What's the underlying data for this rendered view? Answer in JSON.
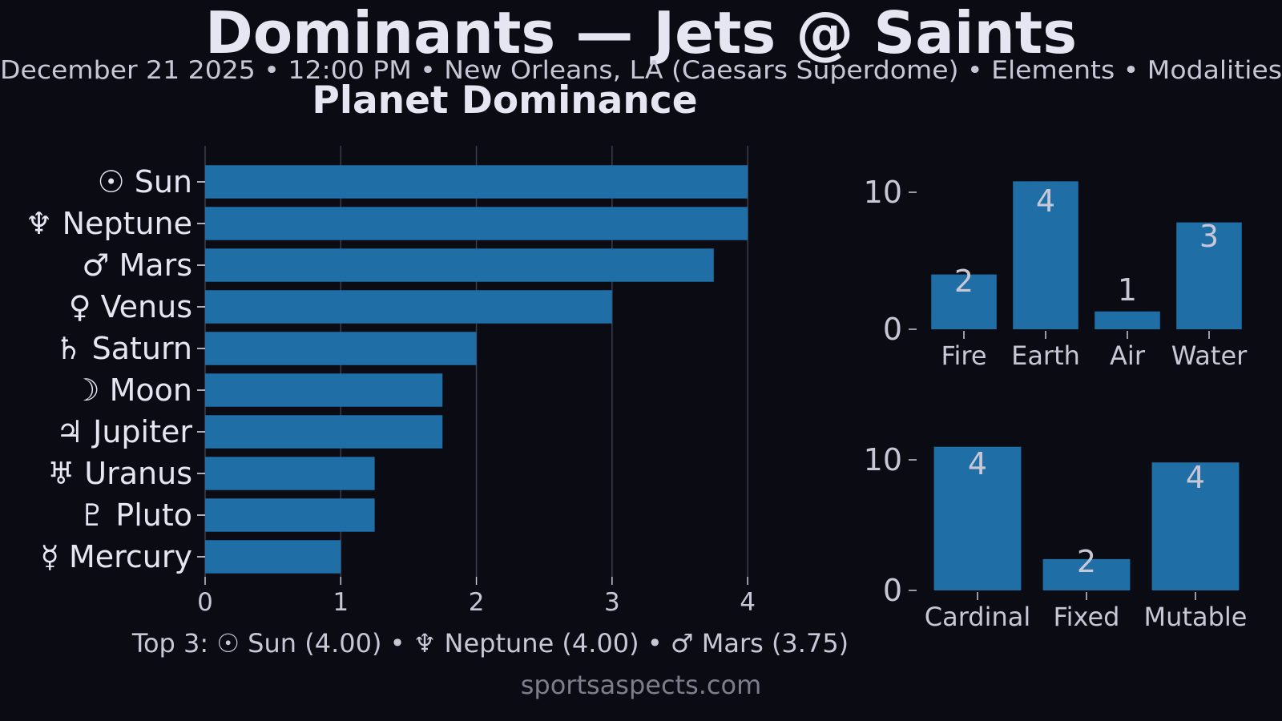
{
  "header": {
    "title": "Dominants — Jets @ Saints",
    "subtitle": "December 21 2025 • 12:00 PM • New Orleans, LA (Caesars Superdome) • Elements • Modalities"
  },
  "footer": {
    "top3": "Top 3: ☉ Sun (4.00) • ♆ Neptune (4.00) • ♂ Mars (3.75)",
    "site": "sportsaspects.com"
  },
  "colors": {
    "background": "#0b0b14",
    "bar": "#1f6ea6",
    "text": "#e6e6f2",
    "muted_text": "#c7c7d6",
    "grid": "#3a3a4a",
    "watermark": "#7d7d8c"
  },
  "chart_data": [
    {
      "type": "bar",
      "orientation": "horizontal",
      "title": "Planet Dominance",
      "categories": [
        "☉ Sun",
        "♆ Neptune",
        "♂ Mars",
        "♀ Venus",
        "♄ Saturn",
        "☽ Moon",
        "♃ Jupiter",
        "♅ Uranus",
        "♇ Pluto",
        "☿ Mercury"
      ],
      "values": [
        4.0,
        4.0,
        3.75,
        3.0,
        2.0,
        1.75,
        1.75,
        1.25,
        1.25,
        1.0
      ],
      "xlim": [
        0,
        4.2
      ],
      "xticks": [
        "0",
        "1",
        "2",
        "3",
        "4"
      ],
      "grid": true
    },
    {
      "type": "bar",
      "title": "",
      "categories": [
        "Fire",
        "Earth",
        "Air",
        "Water"
      ],
      "values": [
        4.0,
        10.8,
        1.3,
        7.8
      ],
      "data_labels": [
        "2",
        "4",
        "1",
        "3"
      ],
      "ylim": [
        0,
        12
      ],
      "yticks": [
        "0",
        "10"
      ],
      "grid": false
    },
    {
      "type": "bar",
      "title": "",
      "categories": [
        "Cardinal",
        "Fixed",
        "Mutable"
      ],
      "values": [
        11.0,
        2.4,
        9.8
      ],
      "data_labels": [
        "4",
        "2",
        "4"
      ],
      "ylim": [
        0,
        12
      ],
      "yticks": [
        "0",
        "10"
      ],
      "grid": false
    }
  ]
}
